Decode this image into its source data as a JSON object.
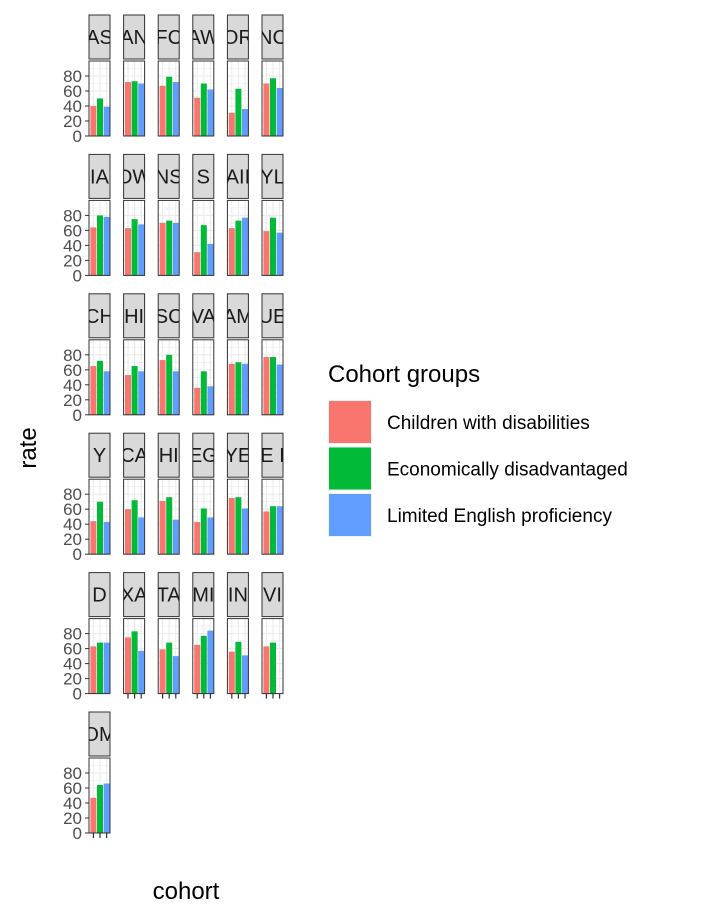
{
  "chart_data": {
    "type": "bar",
    "facet": "wrap",
    "facet_ncol": 6,
    "xlabel": "cohort",
    "ylabel": "rate",
    "ylim": [
      0,
      100
    ],
    "yticks": [
      0,
      20,
      40,
      60,
      80
    ],
    "legend": {
      "title": "Cohort groups",
      "position": "right",
      "entries": [
        {
          "name": "Children with disabilities",
          "color": "#F8766D"
        },
        {
          "name": "Economically disadvantaged",
          "color": "#00BA38"
        },
        {
          "name": "Limited English proficiency",
          "color": "#619CFF"
        }
      ]
    },
    "series_colors": [
      "#F8766D",
      "#00BA38",
      "#619CFF"
    ],
    "panels": [
      {
        "label": "AS",
        "values": [
          40,
          50,
          39
        ]
      },
      {
        "label": "AN",
        "values": [
          72,
          73,
          70
        ]
      },
      {
        "label": "FC",
        "values": [
          67,
          79,
          72
        ]
      },
      {
        "label": "AW",
        "values": [
          51,
          70,
          62
        ]
      },
      {
        "label": "OR",
        "values": [
          31,
          63,
          36
        ]
      },
      {
        "label": "NC",
        "values": [
          70,
          77,
          64
        ]
      },
      {
        "label": "IA",
        "values": [
          64,
          80,
          78
        ]
      },
      {
        "label": "OW",
        "values": [
          63,
          75,
          68
        ]
      },
      {
        "label": "NS",
        "values": [
          70,
          73,
          70
        ]
      },
      {
        "label": "S",
        "values": [
          31,
          67,
          42
        ]
      },
      {
        "label": "AII",
        "values": [
          63,
          73,
          77
        ]
      },
      {
        "label": "YL",
        "values": [
          59,
          77,
          57
        ]
      },
      {
        "label": "CH",
        "values": [
          65,
          72,
          58
        ]
      },
      {
        "label": "HI",
        "values": [
          53,
          65,
          58
        ]
      },
      {
        "label": "SC",
        "values": [
          73,
          80,
          58
        ]
      },
      {
        "label": "VA",
        "values": [
          36,
          58,
          38
        ]
      },
      {
        "label": "AM",
        "values": [
          68,
          70,
          68
        ]
      },
      {
        "label": "UE",
        "values": [
          77,
          77,
          67
        ]
      },
      {
        "label": "Y",
        "values": [
          44,
          70,
          43
        ]
      },
      {
        "label": "CA",
        "values": [
          60,
          72,
          49
        ]
      },
      {
        "label": "HI",
        "values": [
          71,
          76,
          46
        ]
      },
      {
        "label": "EG",
        "values": [
          43,
          61,
          49
        ]
      },
      {
        "label": "YE",
        "values": [
          75,
          76,
          61
        ]
      },
      {
        "label": "E I",
        "values": [
          57,
          64,
          64
        ]
      },
      {
        "label": "D",
        "values": [
          63,
          68,
          68
        ]
      },
      {
        "label": "XA",
        "values": [
          75,
          83,
          57
        ]
      },
      {
        "label": "TA",
        "values": [
          59,
          68,
          50
        ]
      },
      {
        "label": "MI",
        "values": [
          65,
          77,
          84
        ]
      },
      {
        "label": "IN",
        "values": [
          56,
          69,
          51
        ]
      },
      {
        "label": "VI",
        "values": [
          63,
          68,
          0
        ]
      },
      {
        "label": "OM",
        "values": [
          47,
          64,
          66
        ]
      }
    ]
  }
}
